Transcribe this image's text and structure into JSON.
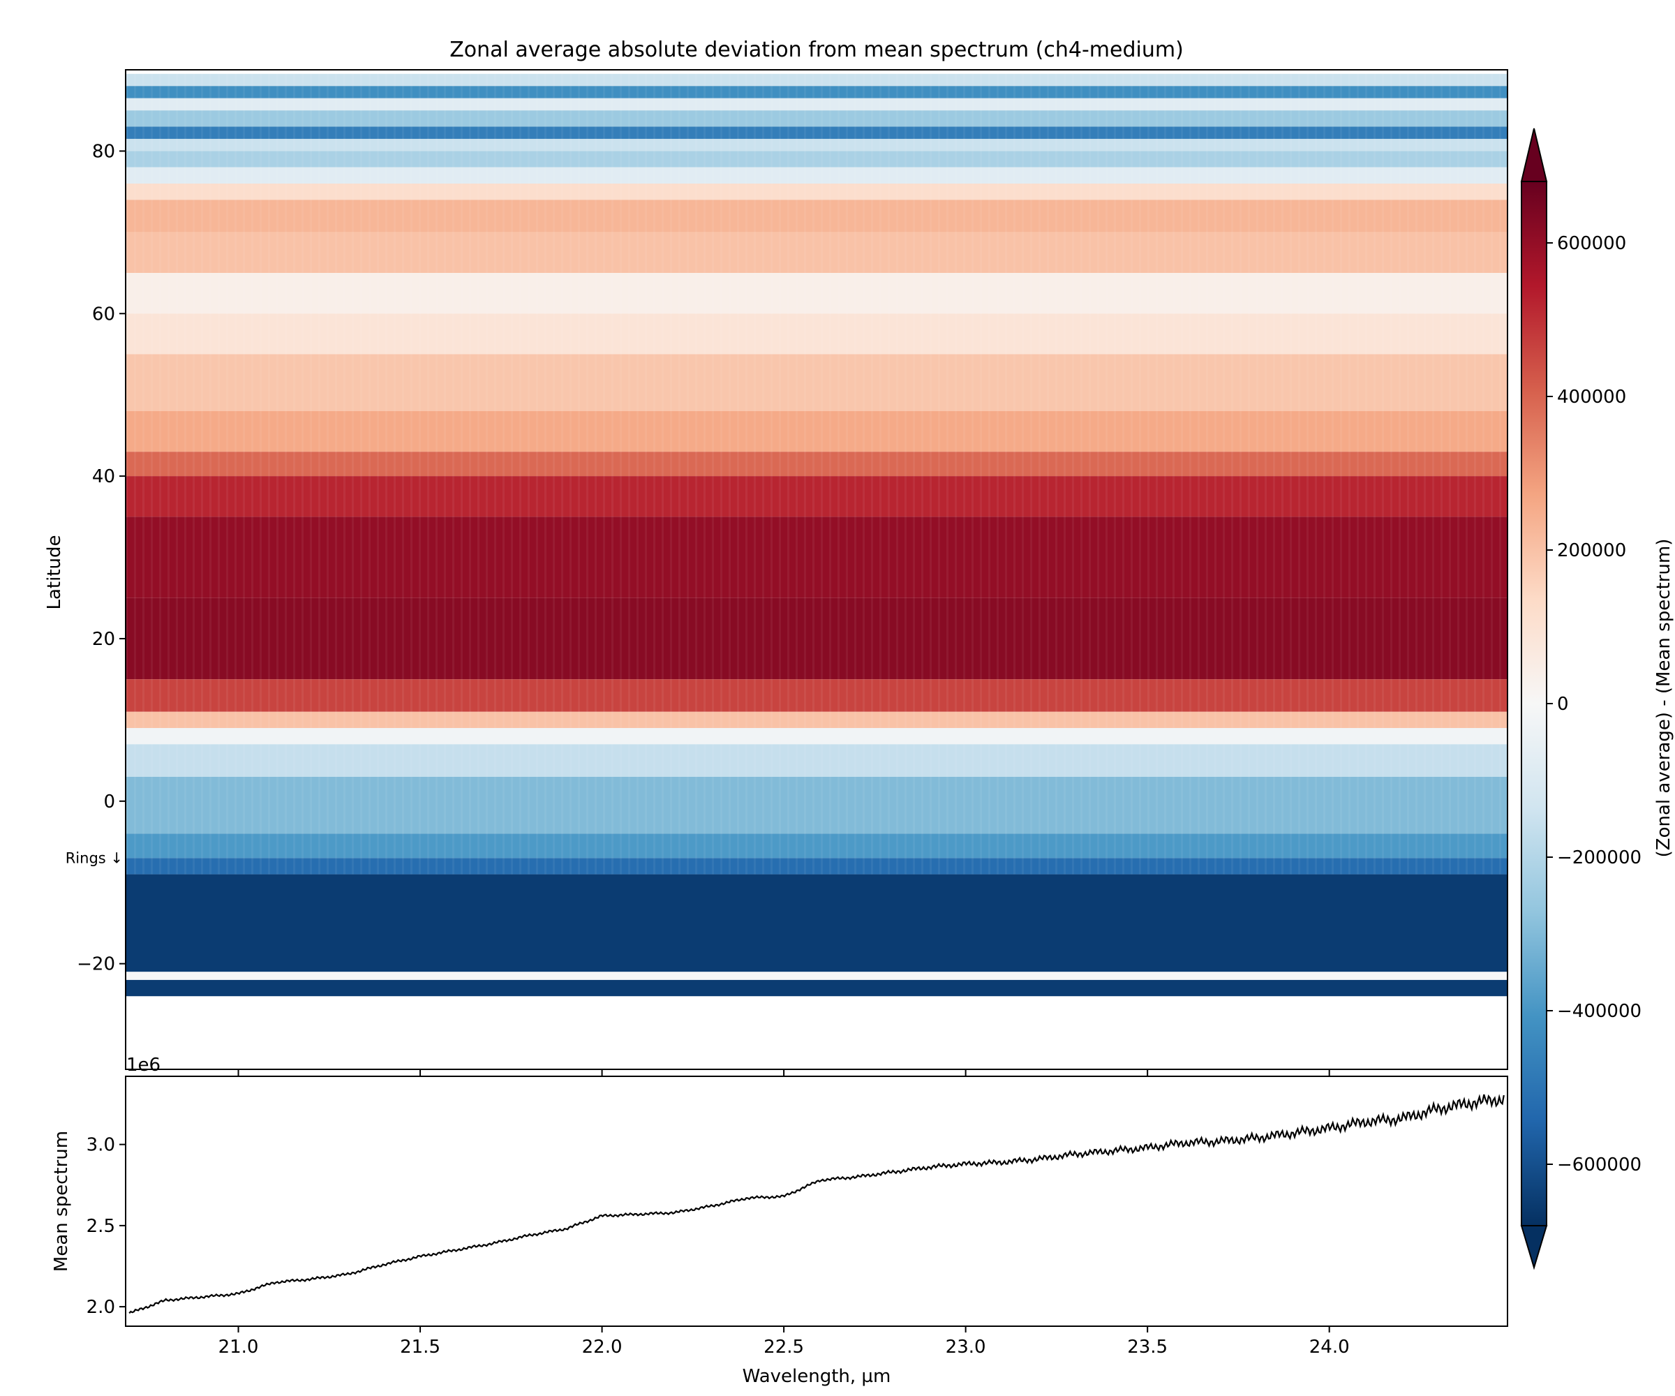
{
  "chart_data": [
    {
      "type": "heatmap",
      "title": "Zonal average absolute deviation from mean spectrum (ch4-medium)",
      "xlabel": "",
      "ylabel": "Latitude",
      "xlim": [
        20.69,
        24.49
      ],
      "ylim": [
        -33,
        90
      ],
      "yticks": [
        -20,
        0,
        20,
        40,
        60,
        80
      ],
      "ytick_labels": [
        "−20",
        "0",
        "20",
        "40",
        "60",
        "80"
      ],
      "annotation": "Rings ↓",
      "annotation_lat": -7,
      "colormap": "RdBu_r",
      "latitude_profile": [
        {
          "lat_from": 88,
          "lat_to": 89.5,
          "value": -150000
        },
        {
          "lat_from": 86.5,
          "lat_to": 88,
          "value": -420000
        },
        {
          "lat_from": 85,
          "lat_to": 86.5,
          "value": -80000
        },
        {
          "lat_from": 83,
          "lat_to": 85,
          "value": -250000
        },
        {
          "lat_from": 81.5,
          "lat_to": 83,
          "value": -470000
        },
        {
          "lat_from": 80,
          "lat_to": 81.5,
          "value": -150000
        },
        {
          "lat_from": 78,
          "lat_to": 80,
          "value": -220000
        },
        {
          "lat_from": 76,
          "lat_to": 78,
          "value": -80000
        },
        {
          "lat_from": 74,
          "lat_to": 76,
          "value": 120000
        },
        {
          "lat_from": 70,
          "lat_to": 74,
          "value": 230000
        },
        {
          "lat_from": 65,
          "lat_to": 70,
          "value": 200000
        },
        {
          "lat_from": 60,
          "lat_to": 65,
          "value": 40000
        },
        {
          "lat_from": 55,
          "lat_to": 60,
          "value": 90000
        },
        {
          "lat_from": 48,
          "lat_to": 55,
          "value": 190000
        },
        {
          "lat_from": 43,
          "lat_to": 48,
          "value": 260000
        },
        {
          "lat_from": 40,
          "lat_to": 43,
          "value": 390000
        },
        {
          "lat_from": 35,
          "lat_to": 40,
          "value": 520000
        },
        {
          "lat_from": 25,
          "lat_to": 35,
          "value": 600000
        },
        {
          "lat_from": 15,
          "lat_to": 25,
          "value": 620000
        },
        {
          "lat_from": 11,
          "lat_to": 15,
          "value": 460000
        },
        {
          "lat_from": 9,
          "lat_to": 11,
          "value": 200000
        },
        {
          "lat_from": 7,
          "lat_to": 9,
          "value": -20000
        },
        {
          "lat_from": 3,
          "lat_to": 7,
          "value": -160000
        },
        {
          "lat_from": -4,
          "lat_to": 3,
          "value": -300000
        },
        {
          "lat_from": -7,
          "lat_to": -4,
          "value": -390000
        },
        {
          "lat_from": -9,
          "lat_to": -7,
          "value": -520000
        },
        {
          "lat_from": -21,
          "lat_to": -9,
          "value": -650000
        },
        {
          "lat_from": -22,
          "lat_to": -21,
          "value": 0
        },
        {
          "lat_from": -24,
          "lat_to": -22,
          "value": -650000
        }
      ]
    },
    {
      "type": "line",
      "xlabel": "Wavelength, µm",
      "ylabel": "Mean spectrum",
      "scale_label": "1e6",
      "xlim": [
        20.69,
        24.49
      ],
      "ylim": [
        1.88,
        3.42
      ],
      "xticks": [
        21.0,
        21.5,
        22.0,
        22.5,
        23.0,
        23.5,
        24.0
      ],
      "xtick_labels": [
        "21.0",
        "21.5",
        "22.0",
        "22.5",
        "23.0",
        "23.5",
        "24.0"
      ],
      "yticks": [
        2.0,
        2.5,
        3.0
      ],
      "ytick_labels": [
        "2.0",
        "2.5",
        "3.0"
      ],
      "series": [
        {
          "x": [
            20.7,
            20.8,
            20.9,
            21.0,
            21.1,
            21.2,
            21.3,
            21.4,
            21.5,
            21.6,
            21.7,
            21.8,
            21.9,
            22.0,
            22.1,
            22.2,
            22.3,
            22.4,
            22.5,
            22.6,
            22.7,
            22.8,
            22.9,
            23.0,
            23.1,
            23.2,
            23.3,
            23.4,
            23.5,
            23.6,
            23.7,
            23.8,
            23.9,
            24.0,
            24.1,
            24.2,
            24.3,
            24.4,
            24.48
          ],
          "y": [
            1.96,
            2.04,
            2.06,
            2.08,
            2.15,
            2.17,
            2.2,
            2.26,
            2.31,
            2.35,
            2.39,
            2.44,
            2.48,
            2.56,
            2.57,
            2.58,
            2.62,
            2.67,
            2.68,
            2.78,
            2.8,
            2.83,
            2.86,
            2.88,
            2.89,
            2.91,
            2.94,
            2.96,
            2.98,
            3.01,
            3.02,
            3.04,
            3.07,
            3.1,
            3.14,
            3.16,
            3.22,
            3.26,
            3.28
          ]
        }
      ]
    },
    {
      "type": "colorbar",
      "label": "(Zonal average) - (Mean spectrum)",
      "range": [
        -680000,
        680000
      ],
      "ticks": [
        -600000,
        -400000,
        -200000,
        0,
        200000,
        400000,
        600000
      ],
      "tick_labels": [
        "−600000",
        "−400000",
        "−200000",
        "0",
        "200000",
        "400000",
        "600000"
      ]
    }
  ]
}
